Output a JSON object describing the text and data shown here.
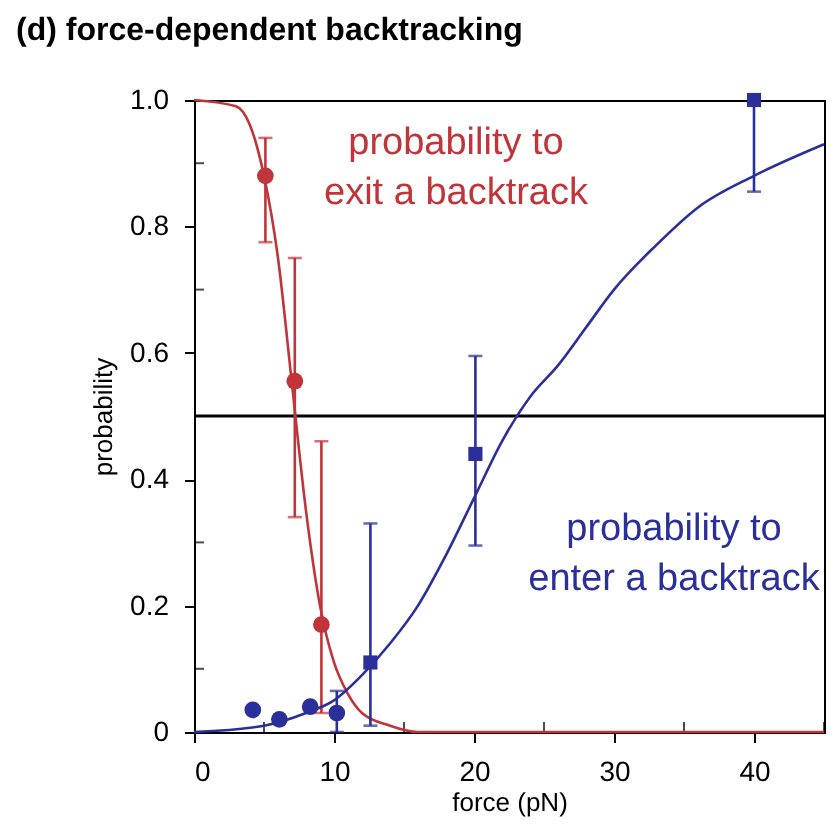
{
  "chart_data": {
    "type": "scatter",
    "title": "(d) force-dependent backtracking",
    "xlabel": "force (pN)",
    "ylabel": "probability",
    "xlim": [
      0,
      45
    ],
    "xticks": [
      0,
      {
        "value": 5,
        "label": null
      },
      10,
      {
        "value": 15,
        "label": null
      },
      20,
      {
        "value": 25,
        "label": null
      },
      30,
      {
        "value": 35,
        "label": null
      },
      40,
      {
        "value": 45,
        "label": null
      }
    ],
    "ylim": [
      0,
      1
    ],
    "yticks": [
      0,
      {
        "value": 0.1,
        "label": null
      },
      0.2,
      {
        "value": 0.3,
        "label": null
      },
      0.4,
      {
        "value": 0.5,
        "label": null
      },
      0.6,
      {
        "value": 0.7,
        "label": null
      },
      0.8,
      {
        "value": 0.9,
        "label": null
      },
      {
        "value": 1,
        "label": "1.0"
      }
    ],
    "grid": false,
    "ref_lines": [
      {
        "axis": "y",
        "value": 0.5,
        "color": "#000000"
      }
    ],
    "series": [
      {
        "name": "probability to\nexit a backtrack",
        "type": "line",
        "color": "#c0353a",
        "x": [
          0,
          3,
          4,
          5,
          6,
          7,
          8,
          9,
          10,
          11,
          12,
          14,
          16,
          20,
          30,
          45
        ],
        "values": [
          1,
          0.99,
          0.96,
          0.88,
          0.75,
          0.55,
          0.35,
          0.2,
          0.11,
          0.06,
          0.03,
          0.01,
          0,
          0,
          0,
          0
        ]
      },
      {
        "type": "scatter",
        "marker": "circle",
        "color": "#c0353a",
        "x": [
          5.1,
          7.2,
          9.1
        ],
        "values": [
          0.88,
          0.555,
          0.17
        ],
        "errors": [
          [
            0.775,
            0.94
          ],
          [
            0.34,
            0.75
          ],
          [
            0.03,
            0.46
          ]
        ]
      },
      {
        "name": "probability to\nenter a backtrack",
        "type": "line",
        "color": "#2a2f9a",
        "x": [
          0,
          5,
          8,
          10,
          12,
          14,
          16,
          18,
          20,
          22,
          24,
          26,
          28,
          30,
          33,
          36,
          40,
          45
        ],
        "values": [
          0,
          0.01,
          0.03,
          0.05,
          0.09,
          0.14,
          0.2,
          0.28,
          0.37,
          0.46,
          0.53,
          0.58,
          0.64,
          0.7,
          0.77,
          0.83,
          0.88,
          0.93
        ]
      },
      {
        "type": "scatter",
        "marker": "circle",
        "color": "#2a2f9a",
        "x": [
          4.2,
          6.1,
          8.3,
          10.2
        ],
        "values": [
          0.035,
          0.02,
          0.04,
          0.03
        ],
        "errors": [
          null,
          null,
          null,
          [
            0,
            0.065
          ]
        ]
      },
      {
        "type": "scatter",
        "marker": "square",
        "color": "#2a2f9a",
        "x": [
          12.6,
          20.1,
          40
        ],
        "values": [
          0.11,
          0.44,
          1
        ],
        "errors": [
          [
            0.01,
            0.33
          ],
          [
            0.295,
            0.595
          ],
          [
            0.855,
            1
          ]
        ]
      }
    ]
  }
}
